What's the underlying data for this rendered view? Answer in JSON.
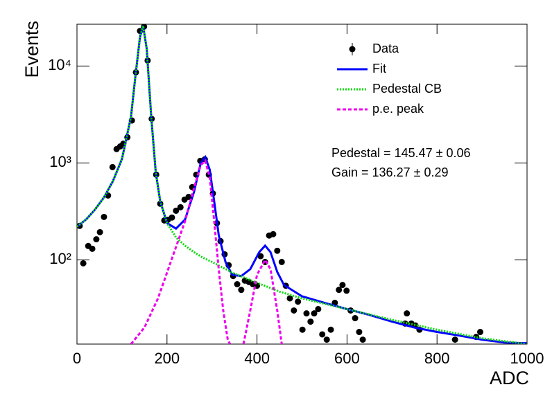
{
  "chart_data": {
    "type": "scatter",
    "x_label": "ADC",
    "y_label": "Events",
    "xlim": [
      0,
      1000
    ],
    "ylim": [
      13.5,
      27000
    ],
    "log_y": true,
    "xticks": [
      0,
      200,
      400,
      600,
      800,
      1000
    ],
    "yticks": [
      {
        "value": 100,
        "label": "10²"
      },
      {
        "value": 1000,
        "label": "10³"
      },
      {
        "value": 10000,
        "label": "10⁴"
      }
    ],
    "legend": "top-right",
    "annotations": [
      "Pedestal = 145.47 ± 0.06",
      "Gain = 136.27 ± 0.29"
    ],
    "series": [
      {
        "name": "Data",
        "color": "#000000",
        "style": "marker",
        "x": [
          6,
          14,
          25,
          34,
          43,
          51,
          60,
          69,
          79,
          88,
          96,
          103,
          112,
          122,
          131,
          140,
          149,
          157,
          166,
          176,
          185,
          194,
          202,
          211,
          220,
          230,
          239,
          248,
          256,
          265,
          274,
          284,
          293,
          302,
          311,
          319,
          328,
          337,
          347,
          356,
          365,
          373,
          382,
          391,
          400,
          408,
          418,
          427,
          436,
          445,
          455,
          464,
          473,
          482,
          491,
          501,
          510,
          519,
          527,
          536,
          545,
          555,
          564,
          573,
          582,
          590,
          599,
          608,
          618,
          627,
          635,
          729,
          733,
          743,
          752,
          761,
          840,
          887,
          896
        ],
        "values": [
          224,
          92,
          139,
          130,
          163,
          193,
          277,
          461,
          906,
          1390,
          1480,
          1580,
          1840,
          2740,
          8620,
          23000,
          25500,
          11400,
          2850,
          756,
          379,
          255,
          259,
          273,
          321,
          349,
          418,
          446,
          563,
          756,
          1050,
          1090,
          756,
          484,
          239,
          156,
          114,
          88,
          68,
          56,
          49,
          61,
          59,
          56,
          54,
          109,
          95,
          178,
          184,
          124,
          95,
          54,
          40,
          30,
          37,
          19,
          28,
          23,
          28,
          31,
          17,
          15,
          19,
          36,
          49,
          55,
          48,
          30,
          25,
          18,
          15,
          22,
          28,
          22,
          21,
          19,
          15,
          16,
          18
        ]
      },
      {
        "name": "Fit",
        "color": "#0000ff",
        "style": "solid",
        "x": [
          0,
          20,
          40,
          60,
          80,
          100,
          120,
          130,
          140,
          147,
          155,
          165,
          175,
          185,
          200,
          220,
          240,
          260,
          275,
          285,
          295,
          305,
          315,
          330,
          345,
          365,
          385,
          405,
          418,
          430,
          445,
          460,
          500,
          550,
          600,
          650,
          700,
          750,
          800,
          850,
          900,
          950,
          1000
        ],
        "values": [
          220,
          260,
          330,
          440,
          650,
          1100,
          3000,
          8000,
          20000,
          26000,
          15000,
          3000,
          800,
          400,
          240,
          210,
          260,
          500,
          1000,
          1150,
          850,
          400,
          180,
          95,
          70,
          68,
          80,
          120,
          140,
          120,
          75,
          55,
          42,
          36,
          31,
          27,
          23,
          20,
          18,
          16.5,
          15,
          14,
          13.8
        ]
      },
      {
        "name": "Pedestal CB",
        "color": "#00dd00",
        "style": "dotted",
        "x": [
          0,
          20,
          40,
          60,
          80,
          100,
          120,
          130,
          140,
          147,
          155,
          165,
          175,
          185,
          200,
          220,
          240,
          260,
          280,
          300,
          350,
          400,
          450,
          500,
          600,
          700,
          800,
          900,
          1000
        ],
        "values": [
          220,
          260,
          330,
          440,
          650,
          1100,
          3000,
          8000,
          20000,
          26000,
          15000,
          3000,
          800,
          400,
          240,
          170,
          140,
          120,
          105,
          95,
          72,
          58,
          47,
          40,
          31,
          24,
          19,
          15.5,
          13.5
        ]
      },
      {
        "name": "p.e. peak",
        "color": "#ee00ee",
        "style": "dashed",
        "x": [
          120,
          150,
          180,
          210,
          240,
          260,
          275,
          285,
          295,
          305,
          315,
          325,
          335,
          340,
          355,
          370,
          385,
          400,
          418,
          430,
          445,
          455
        ],
        "values": [
          13.5,
          20,
          40,
          100,
          250,
          550,
          950,
          1050,
          700,
          250,
          80,
          30,
          15,
          13.5,
          null,
          13.5,
          30,
          70,
          100,
          80,
          30,
          13.5
        ]
      }
    ]
  }
}
